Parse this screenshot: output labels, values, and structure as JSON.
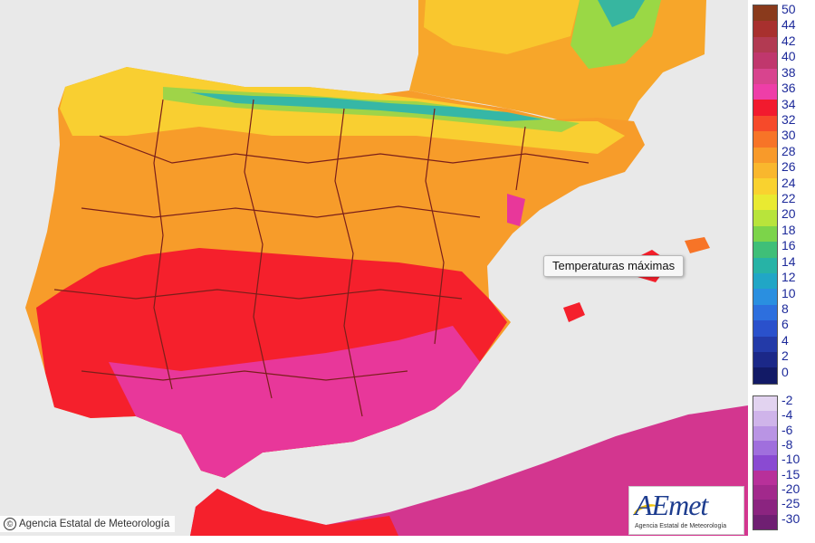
{
  "map": {
    "tooltip": "Temperaturas máximas",
    "credit": "Agencia Estatal de Meteorología",
    "credit_symbol": "©",
    "logo_mark": "AEmet",
    "logo_subtitle": "Agencia Estatal de Meteorología"
  },
  "legend": {
    "positive": [
      {
        "label": "50",
        "color": "#8a3a1c"
      },
      {
        "label": "44",
        "color": "#a8302e"
      },
      {
        "label": "42",
        "color": "#b23a52"
      },
      {
        "label": "40",
        "color": "#c0376d"
      },
      {
        "label": "38",
        "color": "#d8448e"
      },
      {
        "label": "36",
        "color": "#ee3ea8"
      },
      {
        "label": "34",
        "color": "#f21a2e"
      },
      {
        "label": "32",
        "color": "#f64a2a"
      },
      {
        "label": "30",
        "color": "#f77427"
      },
      {
        "label": "28",
        "color": "#f89a2a"
      },
      {
        "label": "26",
        "color": "#f9b72d"
      },
      {
        "label": "24",
        "color": "#f9d22f"
      },
      {
        "label": "22",
        "color": "#e9ea31"
      },
      {
        "label": "20",
        "color": "#b8e43b"
      },
      {
        "label": "18",
        "color": "#7cd44a"
      },
      {
        "label": "16",
        "color": "#3fbf78"
      },
      {
        "label": "14",
        "color": "#27b3a6"
      },
      {
        "label": "12",
        "color": "#21a6c6"
      },
      {
        "label": "10",
        "color": "#2a8fe0"
      },
      {
        "label": "8",
        "color": "#2d6fde"
      },
      {
        "label": "6",
        "color": "#2a51cc"
      },
      {
        "label": "4",
        "color": "#233aa8"
      },
      {
        "label": "2",
        "color": "#1b2888"
      },
      {
        "label": "0",
        "color": "#121a66"
      }
    ],
    "negative": [
      {
        "label": "-2",
        "color": "#e2d3f0"
      },
      {
        "label": "-4",
        "color": "#cfb4ea"
      },
      {
        "label": "-6",
        "color": "#b994e4"
      },
      {
        "label": "-8",
        "color": "#a06fdd"
      },
      {
        "label": "-10",
        "color": "#8a4ad2"
      },
      {
        "label": "-15",
        "color": "#b8309a"
      },
      {
        "label": "-20",
        "color": "#a2298c"
      },
      {
        "label": "-25",
        "color": "#8b2480"
      },
      {
        "label": "-30",
        "color": "#6f1f72"
      }
    ]
  }
}
